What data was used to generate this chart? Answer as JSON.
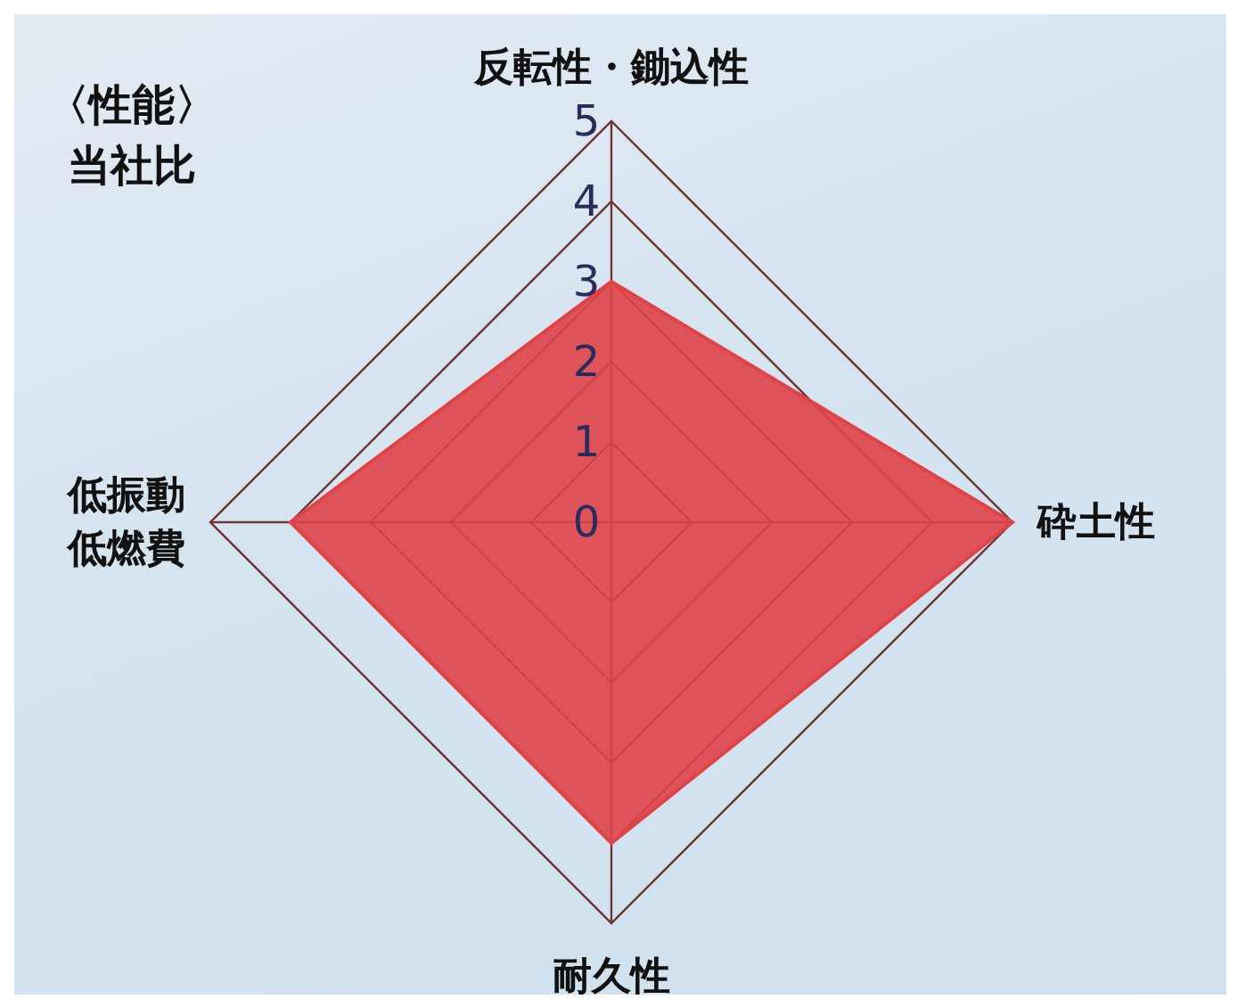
{
  "chart_data": {
    "type": "radar",
    "title": "〈性能〉",
    "subtitle": "当社比",
    "categories": [
      "反転性・鋤込性",
      "砕土性",
      "耐久性",
      "低振動低燃費"
    ],
    "series": [
      {
        "color": "#df4348",
        "values": [
          3,
          5,
          4,
          4
        ]
      }
    ],
    "ylim": [
      0,
      5
    ],
    "yticks": [
      0,
      1,
      2,
      3,
      4,
      5
    ],
    "grid": true
  }
}
